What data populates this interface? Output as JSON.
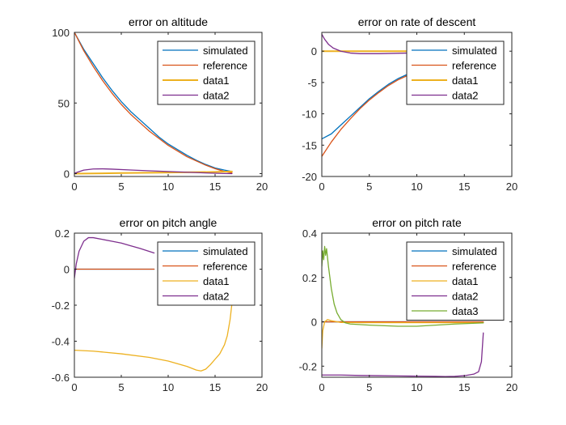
{
  "chart_data": [
    {
      "type": "line",
      "title": "error on altitude",
      "xlabel": "",
      "ylabel": "",
      "xlim": [
        0,
        20
      ],
      "ylim": [
        -2,
        100
      ],
      "xticks": [
        0,
        5,
        10,
        15,
        20
      ],
      "xtick_labels": [
        "0",
        "5",
        "10",
        "15",
        "20"
      ],
      "yticks": [
        0,
        50,
        100
      ],
      "ytick_labels": [
        "0",
        "50",
        "100"
      ],
      "legend_position": "top-right",
      "series": [
        {
          "name": "simulated",
          "color": "#0072BD",
          "width": 1.3,
          "x": [
            0,
            1,
            2,
            3,
            4,
            5,
            6,
            7,
            8,
            9,
            10,
            11,
            12,
            13,
            14,
            15,
            16,
            16.8
          ],
          "y": [
            100,
            88,
            78,
            68,
            59,
            51,
            44,
            38,
            32,
            26,
            21,
            17,
            13,
            9.5,
            6.5,
            4,
            2.5,
            1.5
          ]
        },
        {
          "name": "reference",
          "color": "#D95319",
          "width": 1.3,
          "x": [
            0,
            1,
            2,
            3,
            4,
            5,
            6,
            7,
            8,
            9,
            10,
            11,
            12,
            13,
            14,
            15,
            16,
            16.8
          ],
          "y": [
            100,
            87,
            76,
            66,
            57,
            49,
            42,
            36,
            30,
            25,
            20,
            16,
            12,
            9,
            6,
            3.5,
            1.5,
            0.5
          ]
        },
        {
          "name": "data1",
          "color": "#EDB120",
          "width": 2,
          "x": [
            0,
            5,
            10,
            15,
            16.8
          ],
          "y": [
            0,
            0.4,
            0.8,
            1.2,
            1.5
          ]
        },
        {
          "name": "data2",
          "color": "#7E2F8E",
          "width": 1.3,
          "x": [
            0,
            1,
            2,
            3,
            4,
            6,
            8,
            10,
            12,
            14,
            16,
            16.8
          ],
          "y": [
            0.3,
            2.5,
            3.3,
            3.4,
            3.2,
            2.6,
            2,
            1.5,
            1,
            0.5,
            0.1,
            0
          ]
        }
      ]
    },
    {
      "type": "line",
      "title": "error on rate of descent",
      "xlabel": "",
      "ylabel": "",
      "xlim": [
        0,
        20
      ],
      "ylim": [
        -20,
        3
      ],
      "xticks": [
        0,
        5,
        10,
        15,
        20
      ],
      "xtick_labels": [
        "0",
        "5",
        "10",
        "15",
        "20"
      ],
      "yticks": [
        -20,
        -15,
        -10,
        -5,
        0
      ],
      "ytick_labels": [
        "-20",
        "-15",
        "-10",
        "-5",
        "0"
      ],
      "legend_position": "top-right",
      "series": [
        {
          "name": "simulated",
          "color": "#0072BD",
          "width": 1.3,
          "x": [
            0,
            1,
            2,
            3,
            4,
            5,
            6,
            7,
            8,
            9
          ],
          "y": [
            -14,
            -13.2,
            -11.8,
            -10.4,
            -9,
            -7.6,
            -6.4,
            -5.3,
            -4.4,
            -3.7
          ]
        },
        {
          "name": "reference",
          "color": "#D95319",
          "width": 1.3,
          "x": [
            0,
            1,
            2,
            3,
            4,
            5,
            6,
            7,
            8,
            9
          ],
          "y": [
            -16.8,
            -14.5,
            -12.5,
            -10.8,
            -9.2,
            -7.8,
            -6.6,
            -5.5,
            -4.6,
            -3.9
          ]
        },
        {
          "name": "data1",
          "color": "#EDB120",
          "width": 2,
          "x": [
            0,
            9
          ],
          "y": [
            0,
            0
          ]
        },
        {
          "name": "data2",
          "color": "#7E2F8E",
          "width": 1.3,
          "x": [
            0,
            0.3,
            0.7,
            1.2,
            2,
            3,
            4,
            6,
            9
          ],
          "y": [
            2.7,
            1.9,
            1.1,
            0.5,
            0,
            -0.3,
            -0.4,
            -0.4,
            -0.3
          ]
        }
      ]
    },
    {
      "type": "line",
      "title": "error on pitch angle",
      "xlabel": "",
      "ylabel": "",
      "xlim": [
        0,
        20
      ],
      "ylim": [
        -0.6,
        0.2
      ],
      "xticks": [
        0,
        5,
        10,
        15,
        20
      ],
      "xtick_labels": [
        "0",
        "5",
        "10",
        "15",
        "20"
      ],
      "yticks": [
        -0.6,
        -0.4,
        -0.2,
        0,
        0.2
      ],
      "ytick_labels": [
        "-0.6",
        "-0.4",
        "-0.2",
        "0",
        "0.2"
      ],
      "legend_position": "top-right",
      "series": [
        {
          "name": "simulated",
          "color": "#0072BD",
          "width": 1.3,
          "x": [
            0,
            8.5
          ],
          "y": [
            0,
            0
          ]
        },
        {
          "name": "reference",
          "color": "#D95319",
          "width": 1.3,
          "x": [
            0,
            8.5
          ],
          "y": [
            0,
            0
          ]
        },
        {
          "name": "data1",
          "color": "#EDB120",
          "width": 1.3,
          "x": [
            0,
            2,
            5,
            8,
            10,
            12,
            13,
            13.5,
            14,
            14.5,
            15,
            15.5,
            16,
            16.3,
            16.6,
            16.8
          ],
          "y": [
            -0.45,
            -0.455,
            -0.47,
            -0.49,
            -0.51,
            -0.54,
            -0.56,
            -0.565,
            -0.555,
            -0.53,
            -0.5,
            -0.47,
            -0.42,
            -0.37,
            -0.28,
            -0.19
          ]
        },
        {
          "name": "data2",
          "color": "#7E2F8E",
          "width": 1.3,
          "x": [
            0,
            0.2,
            0.5,
            1,
            1.5,
            2,
            3,
            4,
            5,
            6,
            7,
            8.5
          ],
          "y": [
            -0.05,
            0.03,
            0.1,
            0.155,
            0.175,
            0.175,
            0.165,
            0.155,
            0.145,
            0.13,
            0.115,
            0.09
          ]
        }
      ]
    },
    {
      "type": "line",
      "title": "error on pitch rate",
      "xlabel": "",
      "ylabel": "",
      "xlim": [
        0,
        20
      ],
      "ylim": [
        -0.25,
        0.4
      ],
      "xticks": [
        0,
        5,
        10,
        15,
        20
      ],
      "xtick_labels": [
        "0",
        "5",
        "10",
        "15",
        "20"
      ],
      "yticks": [
        -0.2,
        0,
        0.2,
        0.4
      ],
      "ytick_labels": [
        "-0.2",
        "0",
        "0.2",
        "0.4"
      ],
      "legend_position": "top-right",
      "series": [
        {
          "name": "simulated",
          "color": "#0072BD",
          "width": 1.3,
          "x": [
            0,
            17
          ],
          "y": [
            0,
            0
          ]
        },
        {
          "name": "reference",
          "color": "#D95319",
          "width": 1.3,
          "x": [
            0,
            17
          ],
          "y": [
            0,
            0
          ]
        },
        {
          "name": "data1",
          "color": "#EDB120",
          "width": 1.3,
          "x": [
            0,
            0.1,
            0.3,
            0.6,
            1,
            2,
            4,
            8,
            12,
            17
          ],
          "y": [
            -0.12,
            -0.04,
            0.0,
            0.01,
            0.005,
            -0.003,
            -0.004,
            -0.004,
            -0.004,
            -0.004
          ]
        },
        {
          "name": "data2",
          "color": "#7E2F8E",
          "width": 1.3,
          "x": [
            0,
            2,
            4,
            6,
            8,
            10,
            12,
            13,
            14,
            15,
            16,
            16.5,
            16.8,
            17
          ],
          "y": [
            -0.24,
            -0.24,
            -0.242,
            -0.243,
            -0.244,
            -0.245,
            -0.246,
            -0.247,
            -0.246,
            -0.243,
            -0.236,
            -0.225,
            -0.18,
            -0.05
          ]
        },
        {
          "name": "data3",
          "color": "#77AC30",
          "width": 1.3,
          "x": [
            0,
            0.1,
            0.2,
            0.3,
            0.4,
            0.5,
            0.7,
            1,
            1.3,
            1.6,
            2,
            2.5,
            3,
            5,
            8,
            10,
            12,
            14,
            17
          ],
          "y": [
            0.25,
            0.32,
            0.28,
            0.34,
            0.3,
            0.33,
            0.25,
            0.15,
            0.08,
            0.04,
            0.01,
            -0.005,
            -0.01,
            -0.015,
            -0.02,
            -0.02,
            -0.015,
            -0.01,
            -0.005
          ]
        }
      ]
    }
  ]
}
